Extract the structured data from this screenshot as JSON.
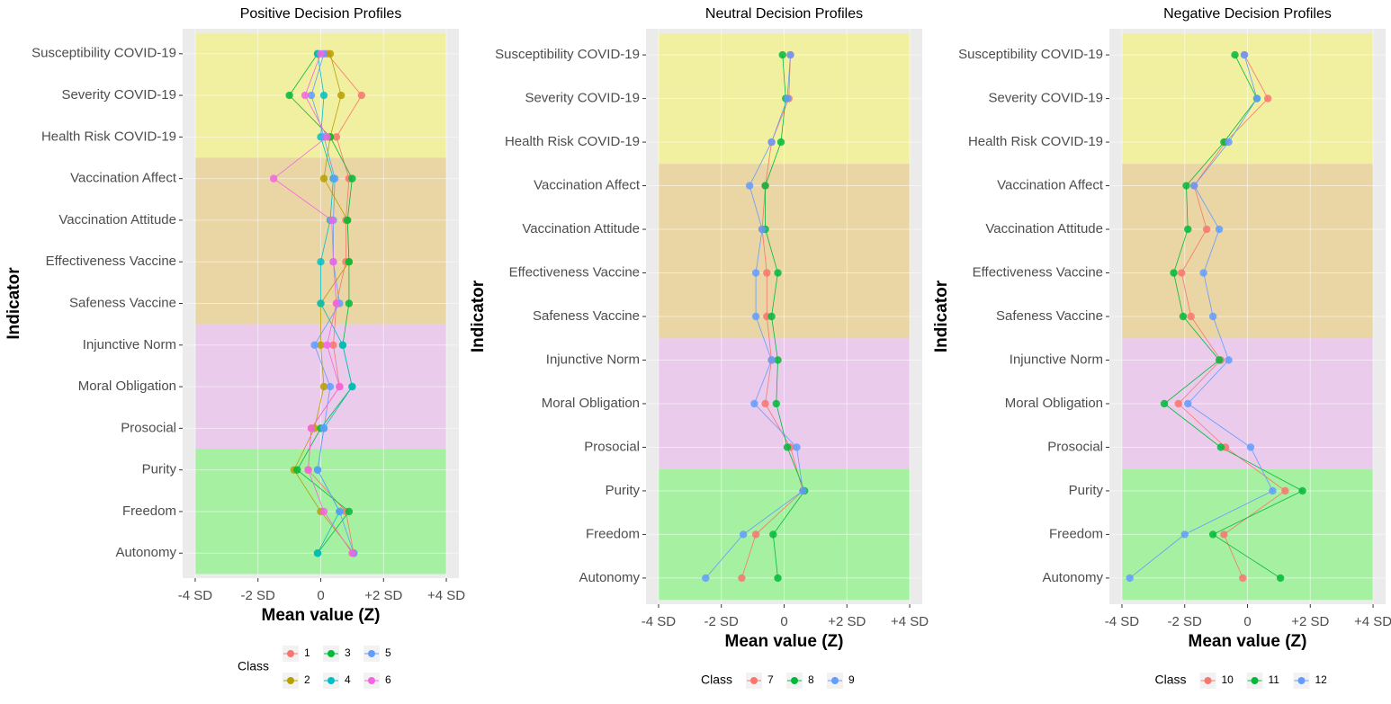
{
  "chart_data": [
    {
      "type": "line",
      "title": "Positive Decision Profiles",
      "xlabel": "Mean value (Z)",
      "ylabel": "Indicator",
      "legend_title": "Class",
      "categories": [
        "Susceptibility COVID-19",
        "Severity COVID-19",
        "Health Risk COVID-19",
        "Vaccination Affect",
        "Vaccination Attitude",
        "Effectiveness Vaccine",
        "Safeness Vaccine",
        "Injunctive Norm",
        "Moral Obligation",
        "Prosocial",
        "Purity",
        "Freedom",
        "Autonomy"
      ],
      "xlim": [
        -4.4,
        4.4
      ],
      "xticks": [
        {
          "value": -4,
          "label": "-4 SD"
        },
        {
          "value": -2,
          "label": "-2 SD"
        },
        0,
        {
          "value": 2,
          "label": "+2 SD"
        },
        {
          "value": 4,
          "label": "+4 SD"
        }
      ],
      "grid": true,
      "series": [
        {
          "name": "1",
          "color": "#F8766D",
          "values": [
            0.2,
            1.3,
            0.5,
            0.9,
            0.8,
            0.8,
            0.5,
            0.4,
            0.6,
            -0.3,
            -0.4,
            0.8,
            1.05
          ]
        },
        {
          "name": "2",
          "color": "#B79F00",
          "values": [
            0.3,
            0.65,
            0.3,
            0.1,
            0.85,
            0.9,
            0.0,
            0.0,
            0.1,
            -0.2,
            -0.85,
            0.0,
            1.05
          ]
        },
        {
          "name": "3",
          "color": "#00BA38",
          "values": [
            -0.1,
            -1.0,
            0.3,
            1.0,
            0.85,
            0.9,
            0.9,
            0.7,
            1.0,
            0.0,
            -0.75,
            0.9,
            -0.1
          ]
        },
        {
          "name": "4",
          "color": "#00BFC4",
          "values": [
            -0.1,
            0.1,
            0.0,
            0.4,
            0.3,
            0.0,
            0.0,
            0.7,
            1.0,
            0.1,
            -0.1,
            0.6,
            -0.1
          ]
        },
        {
          "name": "5",
          "color": "#619CFF",
          "values": [
            0.1,
            -0.3,
            0.1,
            0.45,
            0.4,
            0.4,
            0.6,
            -0.2,
            0.3,
            0.1,
            -0.1,
            0.6,
            1.05
          ]
        },
        {
          "name": "6",
          "color": "#F564E3",
          "values": [
            0.0,
            -0.5,
            0.2,
            -1.5,
            0.35,
            0.4,
            0.5,
            0.2,
            0.6,
            -0.3,
            -0.4,
            0.1,
            1.0
          ]
        }
      ]
    },
    {
      "type": "line",
      "title": "Neutral Decision Profiles",
      "xlabel": "Mean value (Z)",
      "ylabel": "Indicator",
      "legend_title": "Class",
      "categories": [
        "Susceptibility COVID-19",
        "Severity COVID-19",
        "Health Risk COVID-19",
        "Vaccination Affect",
        "Vaccination Attitude",
        "Effectiveness Vaccine",
        "Safeness Vaccine",
        "Injunctive Norm",
        "Moral Obligation",
        "Prosocial",
        "Purity",
        "Freedom",
        "Autonomy"
      ],
      "xlim": [
        -4.4,
        4.4
      ],
      "xticks": [
        {
          "value": -4,
          "label": "-4 SD"
        },
        {
          "value": -2,
          "label": "-2 SD"
        },
        0,
        {
          "value": 2,
          "label": "+2 SD"
        },
        {
          "value": 4,
          "label": "+4 SD"
        }
      ],
      "grid": true,
      "series": [
        {
          "name": "7",
          "color": "#F8766D",
          "values": [
            0.2,
            0.15,
            -0.4,
            -0.6,
            -0.7,
            -0.55,
            -0.55,
            -0.4,
            -0.6,
            0.2,
            0.6,
            -0.9,
            -1.35
          ]
        },
        {
          "name": "8",
          "color": "#00BA38",
          "values": [
            -0.05,
            0.05,
            -0.1,
            -0.6,
            -0.6,
            -0.2,
            -0.4,
            -0.2,
            -0.25,
            0.1,
            0.65,
            -0.35,
            -0.2
          ]
        },
        {
          "name": "9",
          "color": "#619CFF",
          "values": [
            0.2,
            0.1,
            -0.4,
            -1.1,
            -0.7,
            -0.9,
            -0.9,
            -0.4,
            -0.95,
            0.4,
            0.6,
            -1.3,
            -2.5
          ]
        }
      ]
    },
    {
      "type": "line",
      "title": "Negative Decision Profiles",
      "xlabel": "Mean value (Z)",
      "ylabel": "Indicator",
      "legend_title": "Class",
      "categories": [
        "Susceptibility COVID-19",
        "Severity COVID-19",
        "Health Risk COVID-19",
        "Vaccination Affect",
        "Vaccination Attitude",
        "Effectiveness Vaccine",
        "Safeness Vaccine",
        "Injunctive Norm",
        "Moral Obligation",
        "Prosocial",
        "Purity",
        "Freedom",
        "Autonomy"
      ],
      "xlim": [
        -4.4,
        4.4
      ],
      "xticks": [
        {
          "value": -4,
          "label": "-4 SD"
        },
        {
          "value": -2,
          "label": "-2 SD"
        },
        0,
        {
          "value": 2,
          "label": "+2 SD"
        },
        {
          "value": 4,
          "label": "+4 SD"
        }
      ],
      "grid": true,
      "series": [
        {
          "name": "10",
          "color": "#F8766D",
          "values": [
            -0.1,
            0.65,
            -0.7,
            -1.7,
            -1.3,
            -2.1,
            -1.8,
            -0.85,
            -2.2,
            -0.7,
            1.2,
            -0.75,
            -0.15
          ]
        },
        {
          "name": "11",
          "color": "#00BA38",
          "values": [
            -0.4,
            0.3,
            -0.75,
            -1.95,
            -1.9,
            -2.35,
            -2.05,
            -0.9,
            -2.65,
            -0.85,
            1.75,
            -1.1,
            1.05
          ]
        },
        {
          "name": "12",
          "color": "#619CFF",
          "values": [
            -0.1,
            0.3,
            -0.6,
            -1.7,
            -0.9,
            -1.4,
            -1.1,
            -0.6,
            -1.9,
            0.1,
            0.8,
            -2.0,
            -3.75
          ]
        }
      ]
    }
  ]
}
